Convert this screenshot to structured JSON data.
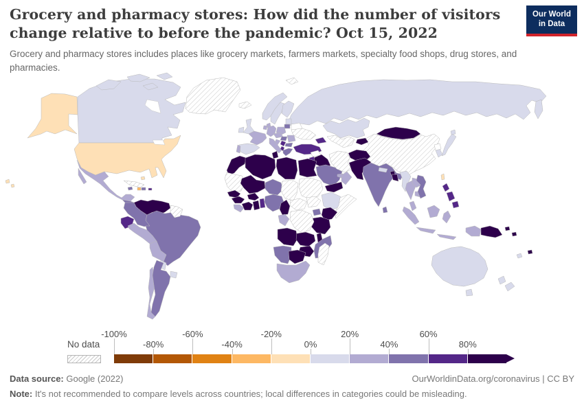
{
  "header": {
    "title": "Grocery and pharmacy stores: How did the number of visitors change relative to before the pandemic? Oct 15, 2022",
    "subtitle": "Grocery and pharmacy stores includes places like grocery markets, farmers markets, specialty food shops, drug stores, and pharmacies.",
    "logo_line1": "Our World",
    "logo_line2": "in Data",
    "logo_bg": "#0d2d5e",
    "logo_accent": "#d1232a"
  },
  "legend": {
    "no_data_label": "No data",
    "tick_labels": [
      "-100%",
      "-80%",
      "-60%",
      "-40%",
      "-20%",
      "0%",
      "20%",
      "40%",
      "60%",
      "80%"
    ],
    "colors": [
      "#7f3b08",
      "#b35806",
      "#e08214",
      "#fdb863",
      "#fee0b6",
      "#d8daeb",
      "#b2abd2",
      "#8073ac",
      "#542788",
      "#2d004b"
    ]
  },
  "footer": {
    "source_label": "Data source:",
    "source_value": " Google (2022)",
    "link": "OurWorldinData.org/coronavirus | CC BY",
    "note_label": "Note:",
    "note_value": " It's not recommended to compare levels across countries; local differences in categories could be misleading."
  },
  "chart_data": {
    "type": "choropleth",
    "title": "Grocery and pharmacy stores: change in visitors relative to pre-pandemic baseline",
    "date": "Oct 15, 2022",
    "unit": "% change",
    "bins": [
      "-100% to -80%",
      "-80% to -60%",
      "-60% to -40%",
      "-40% to -20%",
      "-20% to 0%",
      "0% to 20%",
      "20% to 40%",
      "40% to 60%",
      "60% to 80%",
      "80%+"
    ],
    "bin_colors": [
      "#7f3b08",
      "#b35806",
      "#e08214",
      "#fdb863",
      "#fee0b6",
      "#d8daeb",
      "#b2abd2",
      "#8073ac",
      "#542788",
      "#2d004b"
    ],
    "no_data_label": "No data",
    "regions": {
      "russia": 5,
      "canada": 5,
      "canadian-arctic": 5,
      "china": "nodata",
      "greenland": "nodata",
      "united-states": 4,
      "mexico": 6,
      "cuba": "nodata",
      "haiti": 3,
      "dominican-republic": 7,
      "puerto-rico": 8,
      "jamaica": 7,
      "bahamas": 4,
      "central-america": 7,
      "venezuela": 9,
      "colombia": 7,
      "ecuador": 8,
      "peru": 6,
      "brazil": 7,
      "bolivia": 6,
      "paraguay": 5,
      "uruguay": 5,
      "chile": 6,
      "argentina": 7,
      "guyana-suriname": "nodata",
      "iceland": "nodata",
      "svalbard": "nodata",
      "united-kingdom": 5,
      "ireland": 5,
      "norway": 5,
      "sweden": 5,
      "finland": 5,
      "denmark": 6,
      "estonia-latvia": 5,
      "lithuania": 7,
      "belarus": "none",
      "poland": 6,
      "germany": 6,
      "netherlands-belgium": 6,
      "france": 6,
      "spain": 5,
      "portugal": 6,
      "italy": 6,
      "austria-czechia": 6,
      "hungary": 7,
      "romania": 6,
      "croatia-bosnia": 6,
      "serbia": 8,
      "bulgaria": 7,
      "albania-north-macedonia": 8,
      "greece": 7,
      "ukraine": "nodata",
      "kazakhstan": 5,
      "turkmenistan-uzbekistan": "nodata",
      "kyrgyzstan-tajikistan": 9,
      "caucasus": 8,
      "turkey": 8,
      "syria": "none",
      "iraq": 9,
      "jordan-israel": 8,
      "saudi-arabia": 7,
      "yemen": 9,
      "oman": 6,
      "uae": 6,
      "iran": "nodata",
      "afghanistan": 9,
      "pakistan": 9,
      "morocco": 9,
      "western-sahara-mauritania": "nodata",
      "algeria": 9,
      "tunisia": 9,
      "libya": 9,
      "egypt": 9,
      "mali": 9,
      "niger": 7,
      "chad": "nodata",
      "sudan": "nodata",
      "senegal": 9,
      "guinea": 9,
      "sierra-leone-liberia": 6,
      "ivory-coast": 9,
      "burkina-faso": 9,
      "ghana": 9,
      "benin-togo": 8,
      "nigeria": 7,
      "cameroon": 9,
      "central-african-republic": "nodata",
      "south-sudan": "nodata",
      "ethiopia": 5,
      "somalia": "nodata",
      "kenya": 9,
      "uganda": 7,
      "tanzania": 9,
      "gabon-congo": 6,
      "dr-congo": "nodata",
      "angola": 9,
      "zambia": 9,
      "malawi": 9,
      "mozambique": 7,
      "zimbabwe": 9,
      "namibia": 7,
      "botswana": 9,
      "south-africa": 6,
      "madagascar": "nodata",
      "india": 7,
      "nepal": 5,
      "bhutan": 9,
      "bangladesh": 9,
      "sri-lanka": 7,
      "myanmar": 5,
      "thailand": 6,
      "laos": 6,
      "cambodia": 6,
      "vietnam": 7,
      "malaysia": 6,
      "indonesia": 6,
      "philippines": 8,
      "taiwan": 4,
      "mongolia": 9,
      "japan": 5,
      "south-korea": 5,
      "north-korea": "none",
      "papua-new-guinea": 9,
      "solomon-islands": 9,
      "fiji": 9,
      "new-caledonia": 5,
      "australia": 5,
      "new-zealand": 5,
      "hawaii": 4
    }
  }
}
